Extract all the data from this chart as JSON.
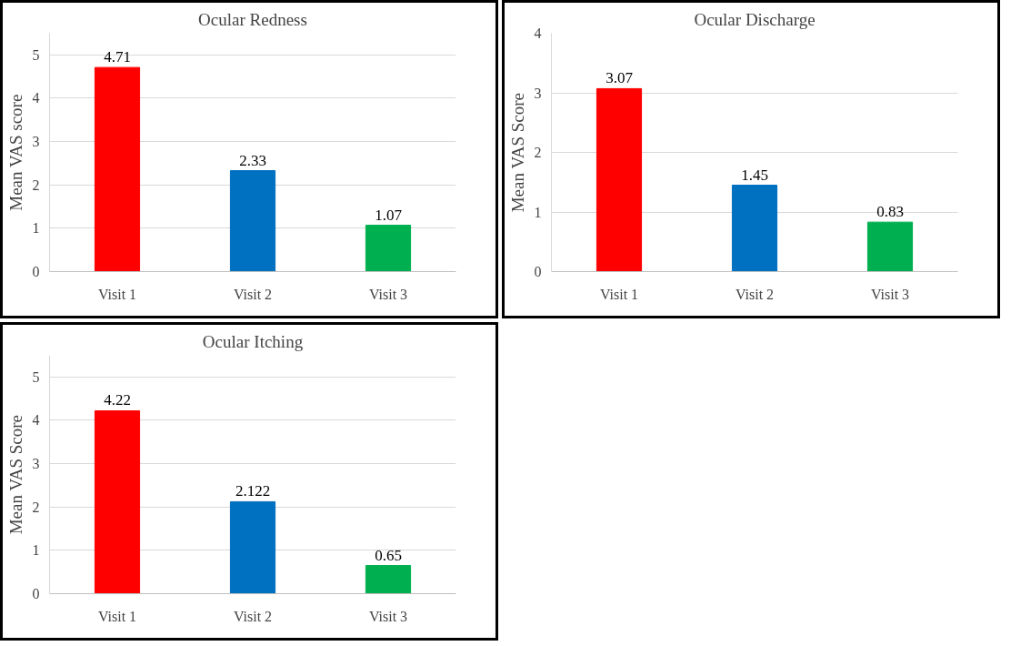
{
  "chart_data": [
    {
      "type": "bar",
      "title": "Ocular Redness",
      "ylabel": "Mean VAS score",
      "categories": [
        "Visit 1",
        "Visit 2",
        "Visit 3"
      ],
      "values": [
        4.71,
        2.33,
        1.07
      ],
      "colors": [
        "#ff0000",
        "#0070c0",
        "#00b050"
      ],
      "ylim": [
        0,
        5.5
      ],
      "yticks": [
        0,
        1,
        2,
        3,
        4,
        5
      ],
      "grid": "y",
      "data_labels": true
    },
    {
      "type": "bar",
      "title": "Ocular Discharge",
      "ylabel": "Mean VAS Score",
      "categories": [
        "Visit 1",
        "Visit 2",
        "Visit 3"
      ],
      "values": [
        3.07,
        1.45,
        0.83
      ],
      "colors": [
        "#ff0000",
        "#0070c0",
        "#00b050"
      ],
      "ylim": [
        0,
        4
      ],
      "yticks": [
        0,
        1,
        2,
        3,
        4
      ],
      "grid": "y",
      "data_labels": true
    },
    {
      "type": "bar",
      "title": "Ocular Itching",
      "ylabel": "Mean VAS Score",
      "categories": [
        "Visit 1",
        "Visit 2",
        "Visit 3"
      ],
      "values": [
        4.22,
        2.122,
        0.65
      ],
      "colors": [
        "#ff0000",
        "#0070c0",
        "#00b050"
      ],
      "ylim": [
        0,
        5.5
      ],
      "yticks": [
        0,
        1,
        2,
        3,
        4,
        5
      ],
      "grid": "y",
      "data_labels": true
    }
  ]
}
